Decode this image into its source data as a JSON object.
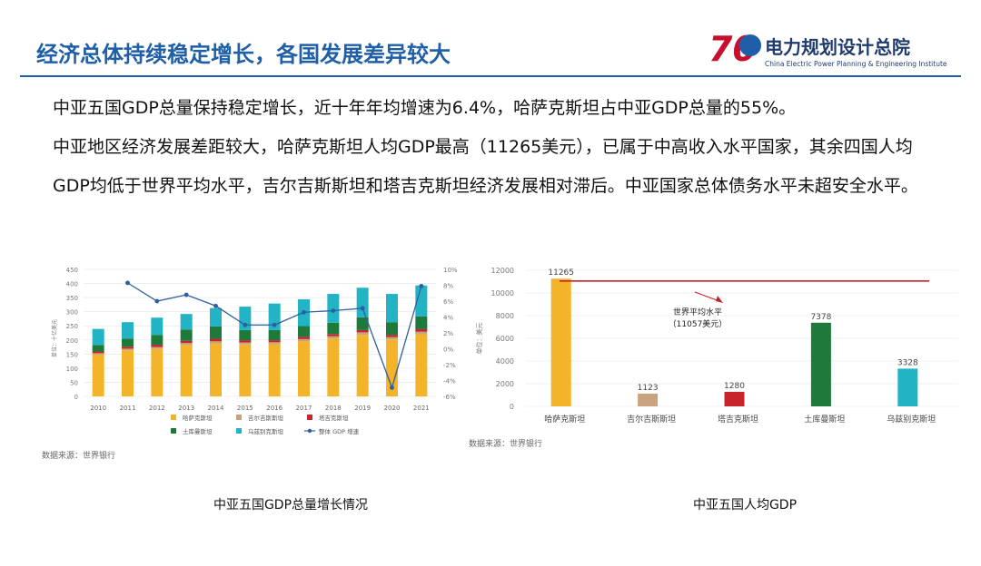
{
  "slide": {
    "title": "经济总体持续稳定增长，各国发展差异较大",
    "logo": {
      "number": "70",
      "name": "电力规划设计总院",
      "english": "China Electric Power Planning & Engineering Institute"
    },
    "paragraphs": [
      "中亚五国GDP总量保持稳定增长，近十年年均增速为6.4%，哈萨克斯坦占中亚GDP总量的55%。",
      "中亚地区经济发展差距较大，哈萨克斯坦人均GDP最高（11265美元），已属于中高收入水平国家，其余四国人均GDP均低于世界平均水平，吉尔吉斯斯坦和塔吉克斯坦经济发展相对滞后。中亚国家总体债务水平未超安全水平。"
    ]
  },
  "chart_data": [
    {
      "type": "bar",
      "stacked": true,
      "caption": "中亚五国GDP总量增长情况",
      "source": "数据来源：世界银行",
      "ylabel": "单位：十亿美元",
      "ylim": [
        0,
        450
      ],
      "yticks": [
        "0",
        "50",
        "100",
        "150",
        "200",
        "250",
        "300",
        "350",
        "400",
        "450"
      ],
      "y2lim": [
        -6,
        10
      ],
      "y2ticks": [
        "-6%",
        "-4%",
        "-2%",
        "0%",
        "2%",
        "4%",
        "6%",
        "8%",
        "10%"
      ],
      "categories": [
        "2010",
        "2011",
        "2012",
        "2013",
        "2014",
        "2015",
        "2016",
        "2017",
        "2018",
        "2019",
        "2020",
        "2021"
      ],
      "series": [
        {
          "name": "哈萨克斯坦",
          "color": "#f3b42a",
          "values": [
            148,
            163,
            168,
            182,
            188,
            184,
            185,
            195,
            205,
            218,
            202,
            220
          ]
        },
        {
          "name": "吉尔吉斯斯坦",
          "color": "#c9a37f",
          "values": [
            5,
            6,
            7,
            7,
            7,
            7,
            7,
            8,
            8,
            9,
            8,
            9
          ]
        },
        {
          "name": "塔吉克斯坦",
          "color": "#c8242b",
          "values": [
            6,
            7,
            8,
            8,
            9,
            8,
            7,
            8,
            8,
            8,
            8,
            9
          ]
        },
        {
          "name": "土库曼斯坦",
          "color": "#1d7a3a",
          "values": [
            23,
            29,
            35,
            40,
            44,
            36,
            36,
            38,
            40,
            45,
            45,
            45
          ]
        },
        {
          "name": "乌兹别克斯坦",
          "color": "#22b3c4",
          "values": [
            57,
            58,
            61,
            55,
            65,
            83,
            94,
            95,
            102,
            105,
            100,
            110
          ]
        }
      ],
      "line": {
        "name": "整体 GDP 增速",
        "color": "#2e5e9c",
        "values": [
          null,
          8.3,
          6.0,
          6.8,
          5.4,
          3.0,
          3.0,
          4.6,
          4.8,
          5.1,
          -4.9,
          7.9
        ]
      },
      "legend": [
        "哈萨克斯坦",
        "吉尔吉斯斯坦",
        "塔吉克斯坦",
        "土库曼斯坦",
        "乌兹别克斯坦",
        "整体 GDP 增速"
      ]
    },
    {
      "type": "bar",
      "caption": "中亚五国人均GDP",
      "source": "数据来源：世界银行",
      "ylabel": "单位：美元",
      "ylim": [
        0,
        12000
      ],
      "yticks": [
        "0",
        "2000",
        "4000",
        "6000",
        "8000",
        "10000",
        "12000"
      ],
      "categories": [
        "哈萨克斯坦",
        "吉尔吉斯斯坦",
        "塔吉克斯坦",
        "土库曼斯坦",
        "乌兹别克斯坦"
      ],
      "values": [
        11265,
        1123,
        1280,
        7378,
        3328
      ],
      "colors": [
        "#f3b42a",
        "#c9a37f",
        "#c8242b",
        "#1d7a3a",
        "#22b3c4"
      ],
      "labels": [
        "11265",
        "1123",
        "1280",
        "7378",
        "3328"
      ],
      "reference": {
        "value": 11057,
        "color": "#c0212b",
        "label1": "世界平均水平",
        "label2": "（11057美元）"
      }
    }
  ]
}
